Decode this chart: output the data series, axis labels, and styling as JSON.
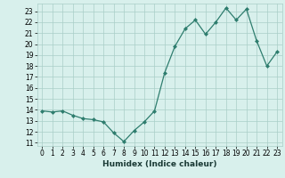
{
  "x": [
    0,
    1,
    2,
    3,
    4,
    5,
    6,
    7,
    8,
    9,
    10,
    11,
    12,
    13,
    14,
    15,
    16,
    17,
    18,
    19,
    20,
    21,
    22,
    23
  ],
  "y": [
    13.9,
    13.8,
    13.9,
    13.5,
    13.2,
    13.1,
    12.9,
    11.9,
    11.1,
    12.1,
    12.9,
    13.9,
    17.4,
    19.8,
    21.4,
    22.2,
    20.9,
    22.0,
    23.3,
    22.2,
    23.2,
    20.3,
    18.0,
    19.3
  ],
  "line_color": "#2e7d6e",
  "marker": "D",
  "marker_size": 2.0,
  "bg_color": "#d8f0ec",
  "grid_color": "#aacec8",
  "xlabel": "Humidex (Indice chaleur)",
  "ylim": [
    10.7,
    23.7
  ],
  "xlim": [
    -0.5,
    23.5
  ],
  "yticks": [
    11,
    12,
    13,
    14,
    15,
    16,
    17,
    18,
    19,
    20,
    21,
    22,
    23
  ],
  "xticks": [
    0,
    1,
    2,
    3,
    4,
    5,
    6,
    7,
    8,
    9,
    10,
    11,
    12,
    13,
    14,
    15,
    16,
    17,
    18,
    19,
    20,
    21,
    22,
    23
  ],
  "tick_fontsize": 5.5,
  "xlabel_fontsize": 6.5,
  "linewidth": 0.9
}
